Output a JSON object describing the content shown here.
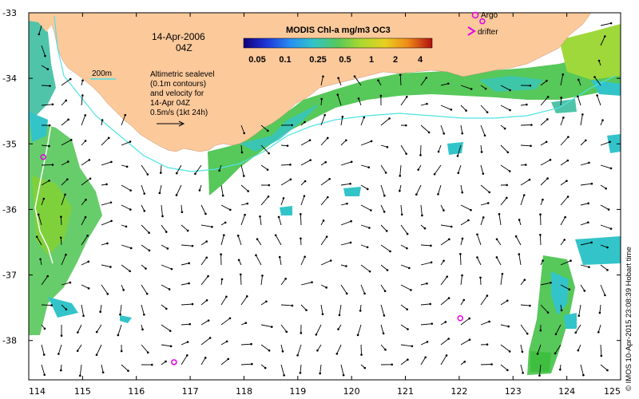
{
  "map": {
    "date": "14-Apr-2006",
    "time": "04Z",
    "lon_ticks": [
      "114",
      "115",
      "116",
      "117",
      "118",
      "119",
      "120",
      "121",
      "122",
      "123",
      "124",
      "125"
    ],
    "lat_ticks": [
      "-33",
      "-34",
      "-35",
      "-36",
      "-37",
      "-38"
    ],
    "lon_range": [
      114,
      125
    ],
    "lat_range": [
      -38.6,
      -33.0
    ],
    "colors": {
      "land": "#fcc99b",
      "chl_low": "#33c4c9",
      "chl_mid": "#57c85a",
      "chl_high": "#9fd83a",
      "isobath": "#4fe3e3",
      "argo": "#e400e4"
    }
  },
  "colorbar": {
    "title": "MODIS Chl-a mg/m3 OC3",
    "labels": [
      "0.05",
      "0.1",
      "0.25",
      "0.5",
      "1",
      "2",
      "4"
    ]
  },
  "legend": {
    "argo": "Argo",
    "drifter": "drifter",
    "isobath": "200m",
    "desc_lines": [
      "Altimetric sealevel",
      "(0.1m contours)",
      "and velocity for",
      "14-Apr 04Z",
      "0.5m/s (1kt 24h)"
    ]
  },
  "credit": "© IMOS 10-Apr-2015 23:08:39 Hobart time",
  "argo_floats": [
    {
      "lon": 114.27,
      "lat": -35.2
    },
    {
      "lon": 122.02,
      "lat": -37.66
    },
    {
      "lon": 116.7,
      "lat": -38.33
    },
    {
      "lon": 122.43,
      "lat": -33.13
    }
  ]
}
